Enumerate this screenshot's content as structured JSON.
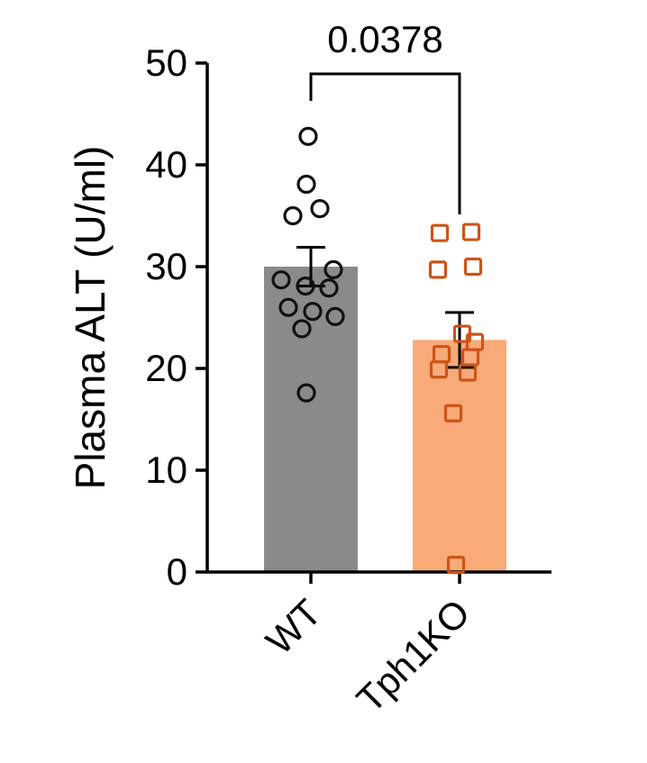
{
  "chart_data": {
    "type": "bar",
    "subtype": "bar-mean-sem-with-individual-points",
    "title": "",
    "xlabel": "",
    "ylabel": "Plasma ALT (U/ml)",
    "ylim": [
      0,
      50
    ],
    "yticks": [
      0,
      10,
      20,
      30,
      40,
      50
    ],
    "categories": [
      "WT",
      "Tph1KO"
    ],
    "grid": false,
    "legend_position": "none",
    "axis_color": "#000000",
    "text_color": "#000000",
    "significance": {
      "label": "0.0378",
      "between": [
        "WT",
        "Tph1KO"
      ]
    },
    "series": [
      {
        "name": "WT",
        "mean": 30.0,
        "sem_low": 28.1,
        "sem_high": 31.9,
        "bar_color": "#8a8a8a",
        "error_color": "#000000",
        "marker": "circle",
        "marker_color": "#111111",
        "points": [
          {
            "dx": -3,
            "y": 42.8
          },
          {
            "dx": -5,
            "y": 38.1
          },
          {
            "dx": 10,
            "y": 35.7
          },
          {
            "dx": -20,
            "y": 35.0
          },
          {
            "dx": 25,
            "y": 29.7
          },
          {
            "dx": -33,
            "y": 28.7
          },
          {
            "dx": -6,
            "y": 28.1
          },
          {
            "dx": 20,
            "y": 27.9
          },
          {
            "dx": -25,
            "y": 26.0
          },
          {
            "dx": 2,
            "y": 25.6
          },
          {
            "dx": 27,
            "y": 25.1
          },
          {
            "dx": -10,
            "y": 23.9
          },
          {
            "dx": -5,
            "y": 17.6
          }
        ]
      },
      {
        "name": "Tph1KO",
        "mean": 22.8,
        "sem_low": 20.1,
        "sem_high": 25.5,
        "bar_color": "#f8aa78",
        "error_color": "#000000",
        "marker": "square",
        "marker_color": "#cd5318",
        "points": [
          {
            "dx": -22,
            "y": 33.3
          },
          {
            "dx": 13,
            "y": 33.4
          },
          {
            "dx": -24,
            "y": 29.7
          },
          {
            "dx": 15,
            "y": 30.0
          },
          {
            "dx": 3,
            "y": 23.4
          },
          {
            "dx": 17,
            "y": 22.6
          },
          {
            "dx": -20,
            "y": 21.4
          },
          {
            "dx": 12,
            "y": 21.1
          },
          {
            "dx": -23,
            "y": 19.9
          },
          {
            "dx": 9,
            "y": 19.6
          },
          {
            "dx": -7,
            "y": 15.6
          },
          {
            "dx": -4,
            "y": 0.7
          }
        ]
      }
    ]
  }
}
